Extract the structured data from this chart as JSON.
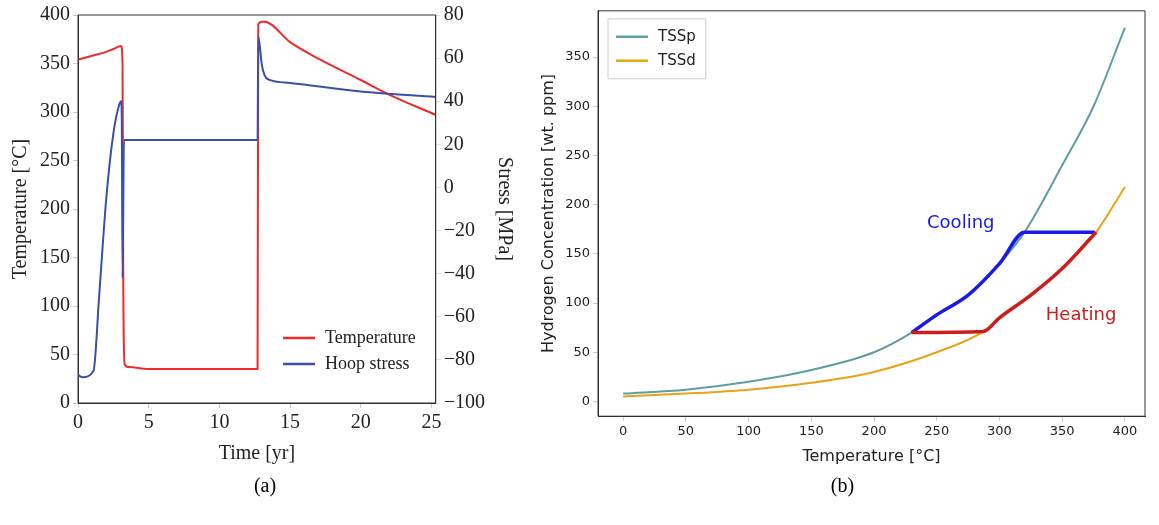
{
  "chart_data": [
    {
      "type": "line",
      "xlabel": "Time [yr]",
      "ylabel": "Temperature [°C]",
      "y2label": "Stress [MPa]",
      "xlim": [
        0,
        25.3
      ],
      "xticks": [
        0,
        5,
        10,
        15,
        20,
        25
      ],
      "ylim": [
        0,
        400
      ],
      "yticks": [
        0,
        50,
        100,
        150,
        200,
        250,
        300,
        350,
        400
      ],
      "y2lim": [
        -100,
        80
      ],
      "y2ticks": [
        -100,
        -80,
        -60,
        -40,
        -20,
        0,
        20,
        40,
        60,
        80
      ],
      "grid": false,
      "legend": "bottom right",
      "marker": "none",
      "annotations": [
        "(a)"
      ],
      "series": [
        {
          "name": "Temperature",
          "color": "#ee2a2a",
          "x": [
            0,
            1,
            2,
            2.5,
            3.05,
            3.15,
            3.2,
            3.3,
            3.6,
            5,
            10,
            12.7,
            12.75,
            13,
            13.2,
            15,
            17,
            20,
            22,
            25.3
          ],
          "values": [
            354,
            358,
            362,
            365,
            368,
            350,
            130,
            40,
            37,
            35,
            35,
            35,
            390,
            393,
            393,
            372,
            355,
            333,
            318,
            297
          ]
        },
        {
          "name": "Hoop stress",
          "color": "#3a4fa8",
          "axis": "y2",
          "x": [
            0,
            0.3,
            1.1,
            1.5,
            2,
            2.5,
            2.9,
            3.05,
            3.1,
            3.15,
            3.25,
            3.5,
            12.7,
            12.75,
            13,
            13.2,
            13.5,
            15,
            20,
            25.3
          ],
          "values": [
            -87,
            -88,
            -85,
            -50,
            -5,
            25,
            38,
            40,
            30,
            -42,
            22,
            22,
            22,
            70,
            57,
            52,
            50,
            48.5,
            44.5,
            42
          ]
        }
      ]
    },
    {
      "type": "line",
      "xlabel": "Temperature [°C]",
      "ylabel": "Hydrogen Concentration [wt. ppm]",
      "xlim": [
        -20,
        416
      ],
      "xticks": [
        0,
        50,
        100,
        150,
        200,
        250,
        300,
        350,
        400
      ],
      "ylim": [
        -15,
        397
      ],
      "yticks": [
        0,
        50,
        100,
        150,
        200,
        250,
        300,
        350
      ],
      "grid": false,
      "legend": "top left",
      "marker": "none",
      "annotations": [
        {
          "text": "Cooling",
          "x": 300,
          "y": 140
        },
        {
          "text": "Heating",
          "x": 325,
          "y": 108
        },
        "(b)"
      ],
      "series": [
        {
          "name": "TSSp",
          "color": "#5f9ea0",
          "x": [
            0,
            50,
            100,
            150,
            200,
            230,
            250,
            275,
            300,
            320,
            350,
            375,
            400
          ],
          "values": [
            8,
            12,
            20,
            32,
            50,
            70,
            88,
            108,
            140,
            172,
            240,
            300,
            380
          ]
        },
        {
          "name": "TSSd",
          "color": "#e8a317",
          "x": [
            0,
            50,
            100,
            150,
            200,
            250,
            287,
            300,
            325,
            350,
            377,
            400
          ],
          "values": [
            5,
            8,
            12,
            19,
            30,
            50,
            71,
            85,
            108,
            135,
            172,
            218
          ]
        },
        {
          "color": "#1a1ae6",
          "x": [
            376,
            320,
            300,
            275,
            250,
            230
          ],
          "values": [
            172,
            172,
            140,
            108,
            88,
            70
          ]
        },
        {
          "color": "#cc1c1c",
          "x": [
            230,
            287,
            300,
            325,
            350,
            377
          ],
          "values": [
            70,
            71,
            85,
            108,
            135,
            172
          ]
        }
      ]
    }
  ]
}
